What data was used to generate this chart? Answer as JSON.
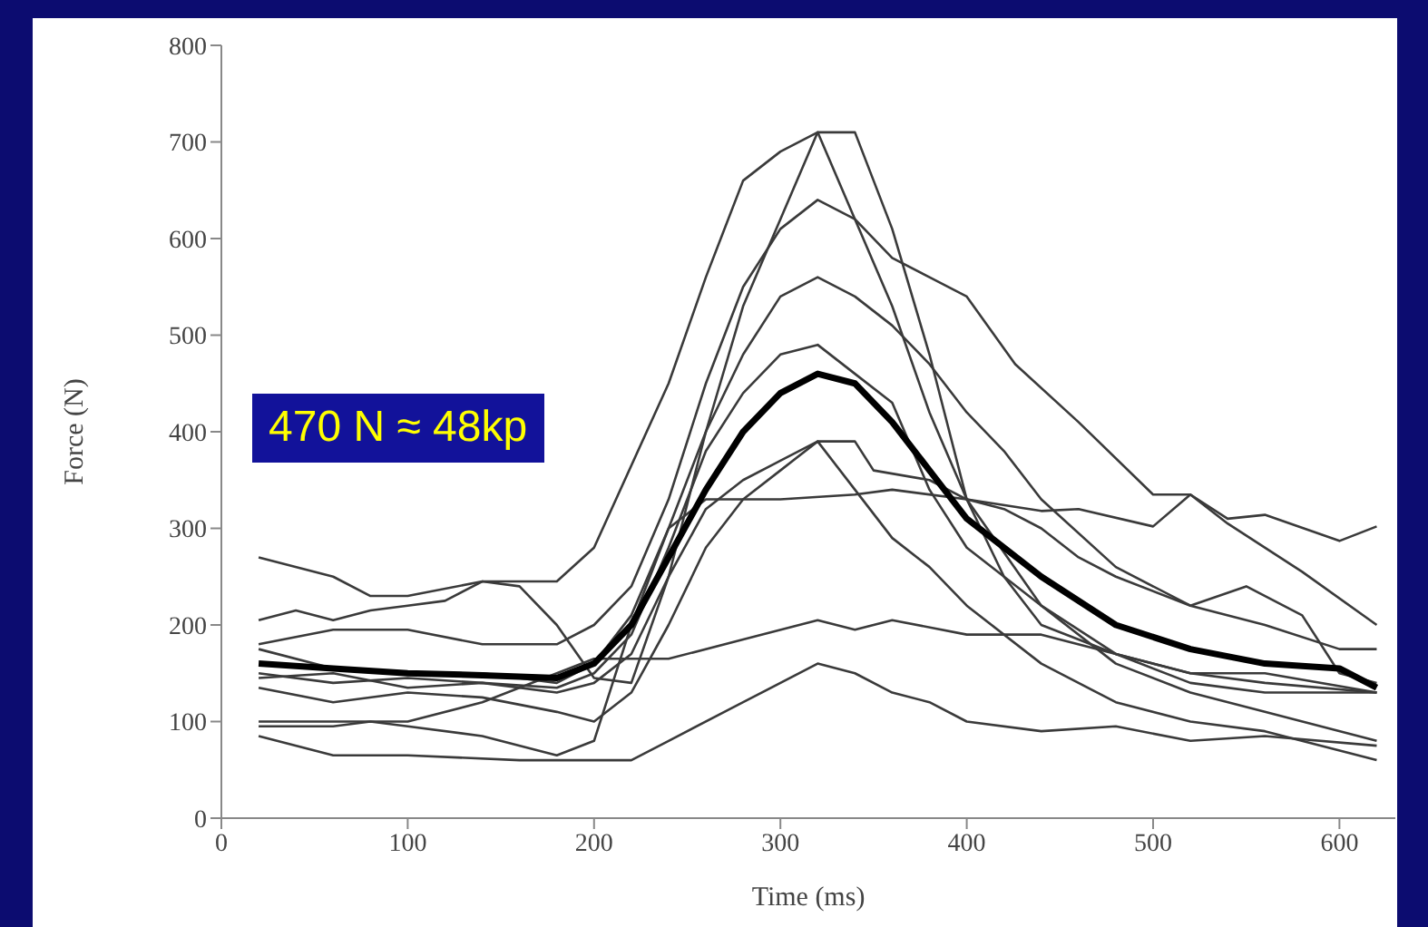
{
  "chart_data": {
    "type": "line",
    "xlabel": "Time (ms)",
    "ylabel": "Force (N)",
    "xlim": [
      0,
      630
    ],
    "xticks": [
      0,
      100,
      200,
      300,
      400,
      500,
      600
    ],
    "ylim": [
      0,
      800
    ],
    "yticks": [
      0,
      100,
      200,
      300,
      400,
      500,
      600,
      700,
      800
    ],
    "grid": false,
    "marker": "none",
    "line_style": "solid",
    "annotations": [
      "470 N ≈ 48kp"
    ],
    "series": [
      {
        "color": "#3a3a3a",
        "x": [
          20,
          60,
          80,
          100,
          140,
          160,
          180,
          200,
          220,
          240,
          260,
          280,
          300,
          320,
          340,
          360,
          380,
          400,
          420,
          440,
          480,
          520,
          560,
          620
        ],
        "values": [
          270,
          250,
          230,
          230,
          245,
          240,
          200,
          145,
          140,
          250,
          400,
          530,
          620,
          710,
          710,
          610,
          480,
          330,
          250,
          200,
          170,
          150,
          150,
          130
        ]
      },
      {
        "color": "#3a3a3a",
        "x": [
          20,
          40,
          60,
          80,
          100,
          120,
          140,
          180,
          200,
          240,
          260,
          280,
          300,
          320,
          340,
          360,
          380,
          400,
          440,
          480,
          520,
          560,
          620
        ],
        "values": [
          205,
          215,
          205,
          215,
          220,
          225,
          245,
          245,
          280,
          450,
          560,
          660,
          690,
          710,
          620,
          530,
          420,
          330,
          220,
          160,
          130,
          110,
          80
        ]
      },
      {
        "color": "#3a3a3a",
        "x": [
          20,
          60,
          100,
          140,
          180,
          200,
          220,
          240,
          260,
          280,
          300,
          320,
          340,
          360,
          380,
          400,
          426,
          460,
          500,
          520,
          540,
          580,
          620
        ],
        "values": [
          180,
          195,
          195,
          180,
          180,
          200,
          240,
          330,
          450,
          550,
          610,
          640,
          620,
          580,
          560,
          540,
          470,
          410,
          335,
          335,
          305,
          255,
          200
        ]
      },
      {
        "color": "#3a3a3a",
        "x": [
          20,
          60,
          100,
          140,
          180,
          200,
          220,
          240,
          260,
          280,
          300,
          320,
          340,
          360,
          380,
          400,
          420,
          440,
          480,
          520,
          560,
          600,
          620
        ],
        "values": [
          175,
          155,
          150,
          150,
          140,
          160,
          210,
          300,
          400,
          480,
          540,
          560,
          540,
          510,
          470,
          420,
          380,
          330,
          260,
          220,
          200,
          175,
          175
        ]
      },
      {
        "color": "#3a3a3a",
        "x": [
          20,
          60,
          100,
          140,
          180,
          200,
          220,
          240,
          260,
          280,
          300,
          320,
          340,
          360,
          380,
          400,
          440,
          480,
          520,
          560,
          620
        ],
        "values": [
          150,
          140,
          145,
          140,
          135,
          150,
          190,
          280,
          380,
          440,
          480,
          490,
          460,
          430,
          340,
          280,
          220,
          170,
          140,
          130,
          130
        ]
      },
      {
        "color": "#3a3a3a",
        "x": [
          20,
          60,
          100,
          140,
          180,
          200,
          220,
          240,
          260,
          280,
          300,
          320,
          340,
          350,
          380,
          400,
          440,
          460,
          500,
          520,
          540,
          560,
          600,
          620
        ],
        "values": [
          145,
          150,
          135,
          140,
          130,
          140,
          170,
          250,
          320,
          350,
          370,
          390,
          390,
          360,
          350,
          330,
          318,
          320,
          302,
          335,
          310,
          314,
          287,
          302
        ]
      },
      {
        "color": "#3a3a3a",
        "x": [
          20,
          60,
          100,
          140,
          180,
          200,
          220,
          240,
          260,
          280,
          300,
          320,
          340,
          360,
          380,
          400,
          440,
          480,
          520,
          560,
          620
        ],
        "values": [
          135,
          120,
          130,
          125,
          110,
          100,
          130,
          200,
          280,
          330,
          360,
          390,
          340,
          290,
          260,
          220,
          160,
          120,
          100,
          90,
          60
        ]
      },
      {
        "color": "#3a3a3a",
        "x": [
          20,
          60,
          80,
          100,
          140,
          180,
          200,
          220,
          240,
          260,
          300,
          340,
          360,
          400,
          420,
          440,
          460,
          480,
          520,
          550,
          580,
          600,
          620
        ],
        "values": [
          95,
          95,
          100,
          95,
          85,
          65,
          80,
          200,
          300,
          330,
          330,
          335,
          340,
          330,
          320,
          300,
          270,
          250,
          220,
          240,
          210,
          150,
          140
        ]
      },
      {
        "color": "#3a3a3a",
        "x": [
          20,
          60,
          100,
          140,
          180,
          200,
          240,
          280,
          320,
          340,
          360,
          400,
          440,
          480,
          520,
          560,
          620
        ],
        "values": [
          100,
          100,
          100,
          120,
          150,
          165,
          165,
          185,
          205,
          195,
          205,
          190,
          190,
          170,
          150,
          140,
          130
        ]
      },
      {
        "color": "#3a3a3a",
        "x": [
          20,
          60,
          100,
          160,
          200,
          220,
          240,
          280,
          320,
          340,
          360,
          380,
          400,
          440,
          480,
          520,
          560,
          620
        ],
        "values": [
          85,
          65,
          65,
          60,
          60,
          60,
          80,
          120,
          160,
          150,
          130,
          120,
          100,
          90,
          95,
          80,
          85,
          75
        ]
      },
      {
        "color": "#000000",
        "x": [
          20,
          60,
          100,
          140,
          180,
          200,
          220,
          240,
          260,
          280,
          300,
          320,
          340,
          360,
          380,
          400,
          440,
          480,
          520,
          560,
          600,
          620
        ],
        "values": [
          160,
          155,
          150,
          148,
          145,
          160,
          200,
          270,
          340,
          400,
          440,
          460,
          450,
          410,
          360,
          310,
          250,
          200,
          175,
          160,
          155,
          135
        ]
      }
    ]
  }
}
